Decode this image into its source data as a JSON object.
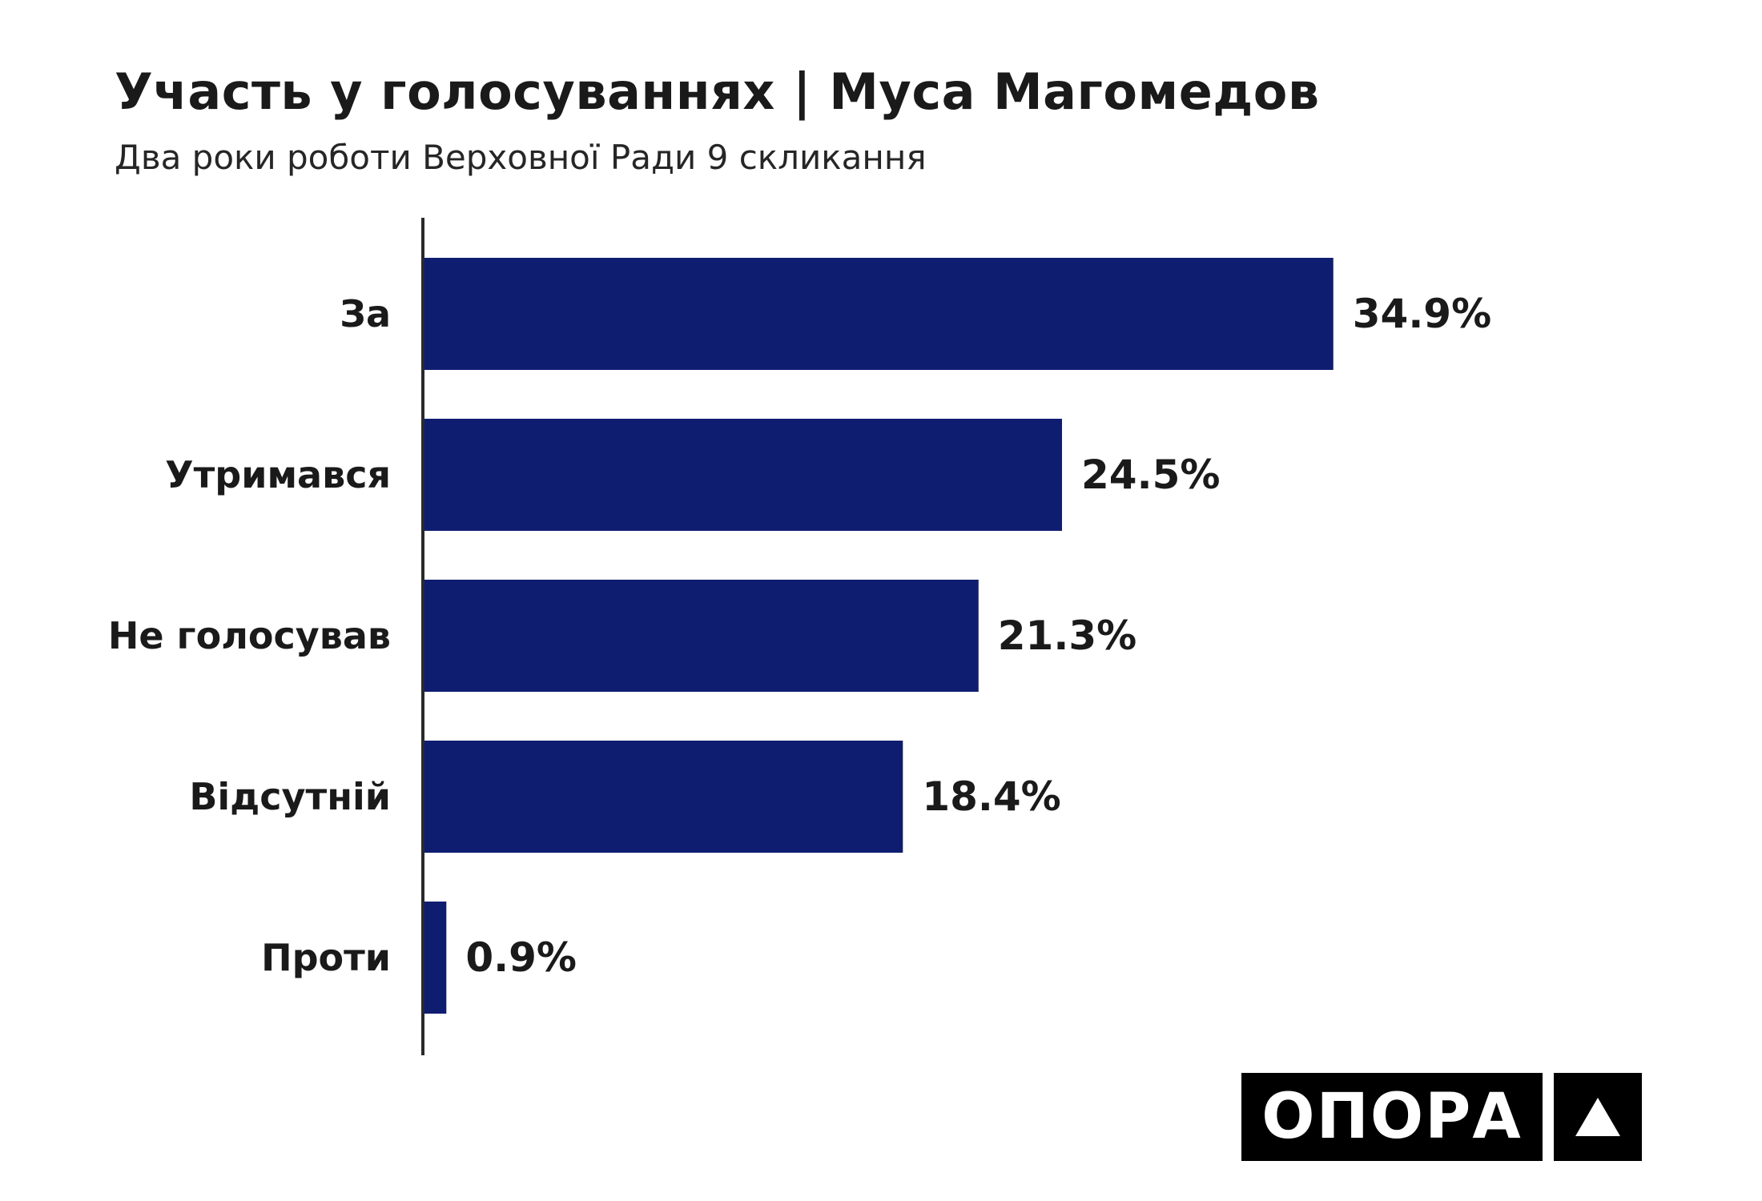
{
  "title": "Участь у голосуваннях | Муса Магомедов",
  "subtitle": "Два роки роботи Верховної Ради 9 скликання",
  "chart_data": {
    "type": "bar",
    "orientation": "horizontal",
    "categories": [
      "За",
      "Утримався",
      "Не голосував",
      "Відсутній",
      "Проти"
    ],
    "values": [
      34.9,
      24.5,
      21.3,
      18.4,
      0.9
    ],
    "value_labels": [
      "34.9%",
      "24.5%",
      "21.3%",
      "18.4%",
      "0.9%"
    ],
    "unit": "%",
    "xlim": [
      0,
      35
    ],
    "grid": false,
    "bar_color": "#0f1d71"
  },
  "logo": {
    "text": "ОПОРА",
    "mark_icon": "triangle-up-icon"
  }
}
